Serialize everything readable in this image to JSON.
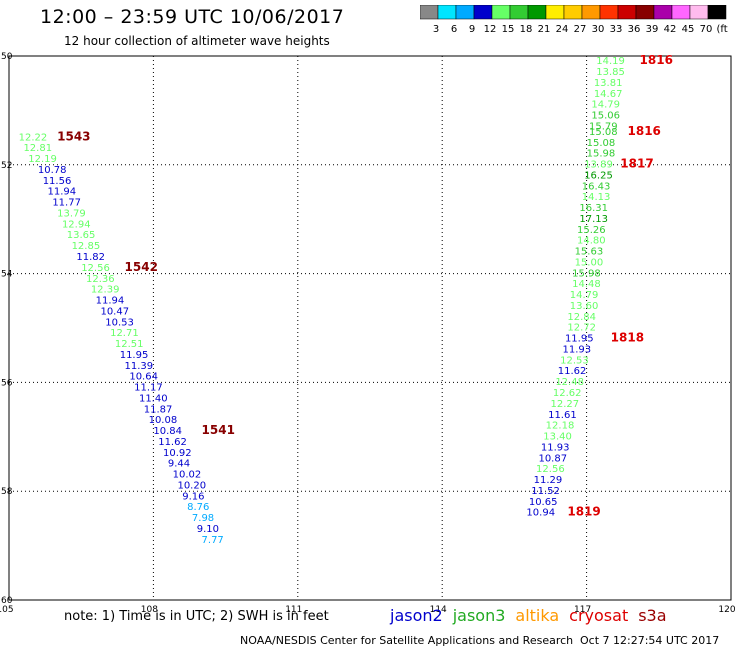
{
  "title": "12:00 – 23:59 UTC 10/06/2017",
  "subtitle": "12 hour collection of altimeter wave heights",
  "note": "note:  1) Time is in UTC;  2) SWH is in feet",
  "missions": [
    {
      "name": "jason2",
      "color": "#0000cc"
    },
    {
      "name": "jason3",
      "color": "#22aa22"
    },
    {
      "name": "altika",
      "color": "#ff9900"
    },
    {
      "name": "cryosat",
      "color": "#dd0000"
    },
    {
      "name": "s3a",
      "color": "#990000"
    }
  ],
  "credit": "NOAA/NESDIS Center for Satellite Applications and Research",
  "timestamp": "Oct  7 12:27:54 UTC 2017",
  "legend": {
    "labels": [
      "3",
      "6",
      "9",
      "12",
      "15",
      "18",
      "21",
      "24",
      "27",
      "30",
      "33",
      "36",
      "39",
      "42",
      "45",
      "70",
      "(ft)"
    ],
    "colors": [
      "#888888",
      "#00e5ff",
      "#00aaff",
      "#0000cc",
      "#66ff66",
      "#33cc33",
      "#009900",
      "#ffee00",
      "#ffcc00",
      "#ff9900",
      "#ff3300",
      "#cc0000",
      "#880000",
      "#aa00aa",
      "#ff66ff",
      "#ffbbee",
      "#000000"
    ]
  },
  "chart_data": {
    "type": "scatter",
    "x_ticks": [
      "105",
      "108",
      "111",
      "114",
      "117",
      "120"
    ],
    "y_ticks": [
      "50",
      "52",
      "54",
      "56",
      "58",
      "60"
    ],
    "xlim": [
      105,
      120
    ],
    "ylim": [
      50,
      60
    ],
    "y_inverted": true,
    "grid": true,
    "tracks": [
      {
        "x": 105.2,
        "y": 51.55,
        "label": "12.22",
        "color": "#66ff66"
      },
      {
        "x": 105.3,
        "y": 51.75,
        "label": "12.81",
        "color": "#66ff66"
      },
      {
        "x": 105.4,
        "y": 51.95,
        "label": "12.19",
        "color": "#66ff66"
      },
      {
        "x": 105.6,
        "y": 52.15,
        "label": "10.78",
        "color": "#0000cc"
      },
      {
        "x": 105.7,
        "y": 52.35,
        "label": "11.56",
        "color": "#0000cc"
      },
      {
        "x": 105.8,
        "y": 52.55,
        "label": "11.94",
        "color": "#0000cc"
      },
      {
        "x": 105.9,
        "y": 52.75,
        "label": "11.77",
        "color": "#0000cc"
      },
      {
        "x": 106.0,
        "y": 52.95,
        "label": "13.79",
        "color": "#66ff66"
      },
      {
        "x": 106.1,
        "y": 53.15,
        "label": "12.94",
        "color": "#66ff66"
      },
      {
        "x": 106.2,
        "y": 53.35,
        "label": "13.65",
        "color": "#66ff66"
      },
      {
        "x": 106.3,
        "y": 53.55,
        "label": "12.85",
        "color": "#66ff66"
      },
      {
        "x": 106.4,
        "y": 53.75,
        "label": "11.82",
        "color": "#0000cc"
      },
      {
        "x": 106.5,
        "y": 53.95,
        "label": "12.56",
        "color": "#66ff66"
      },
      {
        "x": 106.6,
        "y": 54.15,
        "label": "12.36",
        "color": "#66ff66"
      },
      {
        "x": 106.7,
        "y": 54.35,
        "label": "12.39",
        "color": "#66ff66"
      },
      {
        "x": 106.8,
        "y": 54.55,
        "label": "11.94",
        "color": "#0000cc"
      },
      {
        "x": 106.9,
        "y": 54.75,
        "label": "10.47",
        "color": "#0000cc"
      },
      {
        "x": 107.0,
        "y": 54.95,
        "label": "10.53",
        "color": "#0000cc"
      },
      {
        "x": 107.1,
        "y": 55.15,
        "label": "12.71",
        "color": "#66ff66"
      },
      {
        "x": 107.2,
        "y": 55.35,
        "label": "12.51",
        "color": "#66ff66"
      },
      {
        "x": 107.3,
        "y": 55.55,
        "label": "11.95",
        "color": "#0000cc"
      },
      {
        "x": 107.4,
        "y": 55.75,
        "label": "11.39",
        "color": "#0000cc"
      },
      {
        "x": 107.5,
        "y": 55.95,
        "label": "10.64",
        "color": "#0000cc"
      },
      {
        "x": 107.6,
        "y": 56.15,
        "label": "11.17",
        "color": "#0000cc"
      },
      {
        "x": 107.7,
        "y": 56.35,
        "label": "11.40",
        "color": "#0000cc"
      },
      {
        "x": 107.8,
        "y": 56.55,
        "label": "11.87",
        "color": "#0000cc"
      },
      {
        "x": 107.9,
        "y": 56.75,
        "label": "10.08",
        "color": "#0000cc"
      },
      {
        "x": 108.0,
        "y": 56.95,
        "label": "10.84",
        "color": "#0000cc"
      },
      {
        "x": 108.1,
        "y": 57.15,
        "label": "11.62",
        "color": "#0000cc"
      },
      {
        "x": 108.2,
        "y": 57.35,
        "label": "10.92",
        "color": "#0000cc"
      },
      {
        "x": 108.3,
        "y": 57.55,
        "label": "9.44",
        "color": "#0000cc"
      },
      {
        "x": 108.4,
        "y": 57.75,
        "label": "10.02",
        "color": "#0000cc"
      },
      {
        "x": 108.5,
        "y": 57.95,
        "label": "10.20",
        "color": "#0000cc"
      },
      {
        "x": 108.6,
        "y": 58.15,
        "label": "9.16",
        "color": "#0000cc"
      },
      {
        "x": 108.7,
        "y": 58.35,
        "label": "8.76",
        "color": "#00aaff"
      },
      {
        "x": 108.8,
        "y": 58.55,
        "label": "7.98",
        "color": "#00aaff"
      },
      {
        "x": 108.9,
        "y": 58.75,
        "label": "9.10",
        "color": "#0000cc"
      },
      {
        "x": 109.0,
        "y": 58.95,
        "label": "7.77",
        "color": "#00aaff"
      },
      {
        "x": 117.2,
        "y": 50.15,
        "label": "14.19",
        "color": "#66ff66"
      },
      {
        "x": 117.2,
        "y": 50.35,
        "label": "13.85",
        "color": "#66ff66"
      },
      {
        "x": 117.15,
        "y": 50.55,
        "label": "13.81",
        "color": "#66ff66"
      },
      {
        "x": 117.15,
        "y": 50.75,
        "label": "14.67",
        "color": "#66ff66"
      },
      {
        "x": 117.1,
        "y": 50.95,
        "label": "14.79",
        "color": "#66ff66"
      },
      {
        "x": 117.1,
        "y": 51.15,
        "label": "15.06",
        "color": "#33cc33"
      },
      {
        "x": 117.05,
        "y": 51.35,
        "label": "15.79",
        "color": "#33cc33"
      },
      {
        "x": 117.05,
        "y": 51.45,
        "label": "15.08",
        "color": "#33cc33"
      },
      {
        "x": 117.0,
        "y": 51.65,
        "label": "15.08",
        "color": "#33cc33"
      },
      {
        "x": 117.0,
        "y": 51.85,
        "label": "15.98",
        "color": "#33cc33"
      },
      {
        "x": 116.95,
        "y": 52.05,
        "label": "13.89",
        "color": "#66ff66"
      },
      {
        "x": 116.95,
        "y": 52.25,
        "label": "16.25",
        "color": "#009900"
      },
      {
        "x": 116.9,
        "y": 52.45,
        "label": "16.43",
        "color": "#33cc33"
      },
      {
        "x": 116.9,
        "y": 52.65,
        "label": "14.13",
        "color": "#66ff66"
      },
      {
        "x": 116.85,
        "y": 52.85,
        "label": "16.31",
        "color": "#33cc33"
      },
      {
        "x": 116.85,
        "y": 53.05,
        "label": "17.13",
        "color": "#009900"
      },
      {
        "x": 116.8,
        "y": 53.25,
        "label": "15.26",
        "color": "#33cc33"
      },
      {
        "x": 116.8,
        "y": 53.45,
        "label": "14.80",
        "color": "#66ff66"
      },
      {
        "x": 116.75,
        "y": 53.65,
        "label": "15.63",
        "color": "#33cc33"
      },
      {
        "x": 116.75,
        "y": 53.85,
        "label": "15.00",
        "color": "#66ff66"
      },
      {
        "x": 116.7,
        "y": 54.05,
        "label": "15.98",
        "color": "#33cc33"
      },
      {
        "x": 116.7,
        "y": 54.25,
        "label": "14.48",
        "color": "#66ff66"
      },
      {
        "x": 116.65,
        "y": 54.45,
        "label": "14.79",
        "color": "#66ff66"
      },
      {
        "x": 116.65,
        "y": 54.65,
        "label": "13.60",
        "color": "#66ff66"
      },
      {
        "x": 116.6,
        "y": 54.85,
        "label": "12.84",
        "color": "#66ff66"
      },
      {
        "x": 116.6,
        "y": 55.05,
        "label": "12.72",
        "color": "#66ff66"
      },
      {
        "x": 116.55,
        "y": 55.25,
        "label": "11.95",
        "color": "#0000cc"
      },
      {
        "x": 116.5,
        "y": 55.45,
        "label": "11.93",
        "color": "#0000cc"
      },
      {
        "x": 116.45,
        "y": 55.65,
        "label": "12.53",
        "color": "#66ff66"
      },
      {
        "x": 116.4,
        "y": 55.85,
        "label": "11.62",
        "color": "#0000cc"
      },
      {
        "x": 116.35,
        "y": 56.05,
        "label": "12.48",
        "color": "#66ff66"
      },
      {
        "x": 116.3,
        "y": 56.25,
        "label": "12.62",
        "color": "#66ff66"
      },
      {
        "x": 116.25,
        "y": 56.45,
        "label": "12.27",
        "color": "#66ff66"
      },
      {
        "x": 116.2,
        "y": 56.65,
        "label": "11.61",
        "color": "#0000cc"
      },
      {
        "x": 116.15,
        "y": 56.85,
        "label": "12.18",
        "color": "#66ff66"
      },
      {
        "x": 116.1,
        "y": 57.05,
        "label": "13.40",
        "color": "#66ff66"
      },
      {
        "x": 116.05,
        "y": 57.25,
        "label": "11.93",
        "color": "#0000cc"
      },
      {
        "x": 116.0,
        "y": 57.45,
        "label": "10.87",
        "color": "#0000cc"
      },
      {
        "x": 115.95,
        "y": 57.65,
        "label": "12.56",
        "color": "#66ff66"
      },
      {
        "x": 115.9,
        "y": 57.85,
        "label": "11.29",
        "color": "#0000cc"
      },
      {
        "x": 115.85,
        "y": 58.05,
        "label": "11.52",
        "color": "#0000cc"
      },
      {
        "x": 115.8,
        "y": 58.25,
        "label": "10.65",
        "color": "#0000cc"
      },
      {
        "x": 115.75,
        "y": 58.45,
        "label": "10.94",
        "color": "#0000cc"
      }
    ],
    "pass_labels": [
      {
        "x": 106.0,
        "y": 51.55,
        "label": "1543",
        "color": "#880000"
      },
      {
        "x": 107.4,
        "y": 53.95,
        "label": "1542",
        "color": "#880000"
      },
      {
        "x": 109.0,
        "y": 56.95,
        "label": "1541",
        "color": "#880000"
      },
      {
        "x": 118.1,
        "y": 50.15,
        "label": "1816",
        "color": "#dd0000"
      },
      {
        "x": 117.85,
        "y": 51.45,
        "label": "1816",
        "color": "#dd0000"
      },
      {
        "x": 117.7,
        "y": 52.05,
        "label": "1817",
        "color": "#dd0000"
      },
      {
        "x": 117.5,
        "y": 55.25,
        "label": "1818",
        "color": "#dd0000"
      },
      {
        "x": 116.6,
        "y": 58.45,
        "label": "1819",
        "color": "#dd0000"
      }
    ]
  }
}
